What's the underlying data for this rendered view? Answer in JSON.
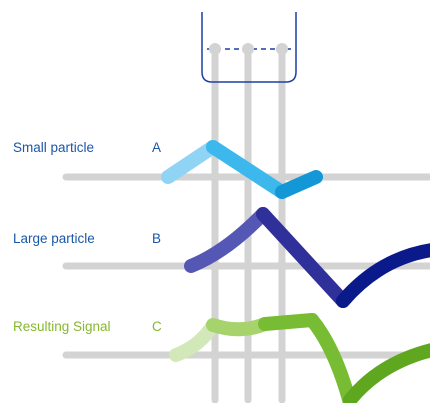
{
  "rows": [
    {
      "name": "Small particle",
      "letter": "A"
    },
    {
      "name": "Large particle",
      "letter": "B"
    },
    {
      "name": "Resulting Signal",
      "letter": "C"
    }
  ],
  "colors": {
    "text_blue": "#1b57a8",
    "text_green": "#86b92e",
    "grid": "#d3d3d3",
    "detector": "#1f3f9f",
    "a_light": "#8fd3f5",
    "a_mid": "#3cb8ec",
    "a_dark": "#1497d6",
    "b_light": "#5557b5",
    "b_mid": "#30309a",
    "b_dark": "#0a1a8a",
    "c_faint": "#d2e8b8",
    "c_light": "#a7d36d",
    "c_mid": "#78bc33",
    "c_dark": "#5ea71e"
  }
}
